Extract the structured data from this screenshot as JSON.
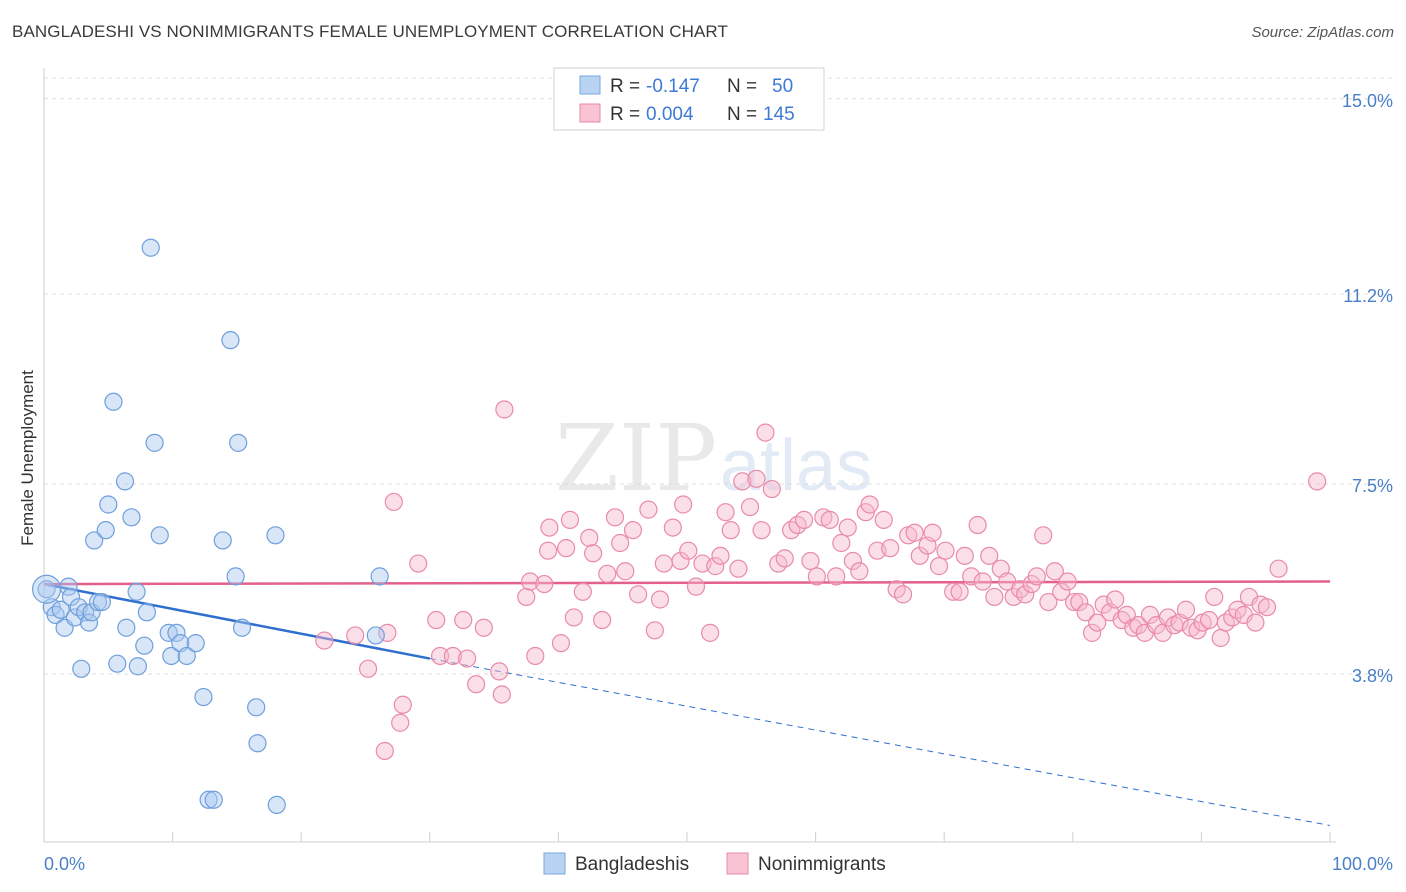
{
  "title": "BANGLADESHI VS NONIMMIGRANTS FEMALE UNEMPLOYMENT CORRELATION CHART",
  "source": "Source: ZipAtlas.com",
  "watermark": {
    "zip": "ZIP",
    "atlas": "atlas"
  },
  "chart_data": {
    "type": "scatter",
    "title": "BANGLADESHI VS NONIMMIGRANTS FEMALE UNEMPLOYMENT CORRELATION CHART",
    "xlabel": "",
    "ylabel": "Female Unemployment",
    "xlim": [
      0,
      100
    ],
    "ylim": [
      0.8,
      15.6
    ],
    "x_tick_labels": [
      "0.0%",
      "100.0%"
    ],
    "y_ticks": [
      {
        "value": 15.0,
        "label": "15.0%"
      },
      {
        "value": 11.2,
        "label": "11.2%"
      },
      {
        "value": 7.5,
        "label": "7.5%"
      },
      {
        "value": 3.8,
        "label": "3.8%"
      }
    ],
    "grid": true,
    "legend_position": "top-center",
    "stats": [
      {
        "r_label": "R = ",
        "r_value": "-0.147",
        "n_label": "N = ",
        "n_value": "50"
      },
      {
        "r_label": "R = ",
        "r_value": "0.004",
        "n_label": "N = ",
        "n_value": "145"
      }
    ],
    "series": [
      {
        "name": "Bangladeshis",
        "color": "#a9c8ef",
        "stroke": "#6f9fdc",
        "trend_color": "#2f6fce",
        "trend": {
          "x0": 0,
          "y0": 5.55,
          "x1": 30,
          "y1": 4.1,
          "dash_to_x": 100,
          "dash_to_y": 0.85
        },
        "points": [
          [
            0.2,
            5.45
          ],
          [
            0.6,
            5.1
          ],
          [
            0.9,
            4.95
          ],
          [
            1.3,
            5.05
          ],
          [
            1.6,
            4.7
          ],
          [
            1.9,
            5.5
          ],
          [
            2.1,
            5.3
          ],
          [
            2.4,
            4.9
          ],
          [
            2.7,
            5.1
          ],
          [
            2.9,
            3.9
          ],
          [
            3.2,
            5.0
          ],
          [
            3.5,
            4.8
          ],
          [
            3.7,
            5.0
          ],
          [
            3.9,
            6.4
          ],
          [
            4.2,
            5.2
          ],
          [
            4.5,
            5.2
          ],
          [
            4.8,
            6.6
          ],
          [
            5.0,
            7.1
          ],
          [
            5.4,
            9.1
          ],
          [
            5.7,
            4.0
          ],
          [
            6.3,
            7.55
          ],
          [
            6.4,
            4.7
          ],
          [
            6.8,
            6.85
          ],
          [
            7.2,
            5.4
          ],
          [
            7.3,
            3.95
          ],
          [
            7.8,
            4.35
          ],
          [
            8.0,
            5.0
          ],
          [
            8.3,
            12.1
          ],
          [
            8.6,
            8.3
          ],
          [
            9.0,
            6.5
          ],
          [
            9.7,
            4.6
          ],
          [
            9.9,
            4.15
          ],
          [
            10.3,
            4.6
          ],
          [
            10.6,
            4.4
          ],
          [
            11.1,
            4.15
          ],
          [
            11.8,
            4.4
          ],
          [
            12.4,
            3.35
          ],
          [
            12.8,
            1.35
          ],
          [
            13.2,
            1.35
          ],
          [
            13.9,
            6.4
          ],
          [
            14.5,
            10.3
          ],
          [
            14.9,
            5.7
          ],
          [
            15.1,
            8.3
          ],
          [
            15.4,
            4.7
          ],
          [
            16.5,
            3.15
          ],
          [
            16.6,
            2.45
          ],
          [
            18.0,
            6.5
          ],
          [
            18.1,
            1.25
          ],
          [
            25.8,
            4.55
          ],
          [
            26.1,
            5.7
          ]
        ]
      },
      {
        "name": "Nonimmigrants",
        "color": "#f7b9cc",
        "stroke": "#e98aa8",
        "trend_color": "#e3608b",
        "trend": {
          "x0": 0,
          "y0": 5.55,
          "x1": 100,
          "y1": 5.6
        },
        "points": [
          [
            21.8,
            4.45
          ],
          [
            24.2,
            4.55
          ],
          [
            25.2,
            3.9
          ],
          [
            26.5,
            2.3
          ],
          [
            26.7,
            4.6
          ],
          [
            27.2,
            7.15
          ],
          [
            27.7,
            2.85
          ],
          [
            27.9,
            3.2
          ],
          [
            29.1,
            5.95
          ],
          [
            30.5,
            4.85
          ],
          [
            30.8,
            4.15
          ],
          [
            31.8,
            4.15
          ],
          [
            32.6,
            4.85
          ],
          [
            32.9,
            4.1
          ],
          [
            33.6,
            3.6
          ],
          [
            34.2,
            4.7
          ],
          [
            35.4,
            3.85
          ],
          [
            35.6,
            3.4
          ],
          [
            35.8,
            8.95
          ],
          [
            37.5,
            5.3
          ],
          [
            37.8,
            5.6
          ],
          [
            38.2,
            4.15
          ],
          [
            38.9,
            5.55
          ],
          [
            39.2,
            6.2
          ],
          [
            39.3,
            6.65
          ],
          [
            40.2,
            4.4
          ],
          [
            40.6,
            6.25
          ],
          [
            40.9,
            6.8
          ],
          [
            41.2,
            4.9
          ],
          [
            41.9,
            5.4
          ],
          [
            42.4,
            6.45
          ],
          [
            42.7,
            6.15
          ],
          [
            43.4,
            4.85
          ],
          [
            43.8,
            5.75
          ],
          [
            44.4,
            6.85
          ],
          [
            44.8,
            6.35
          ],
          [
            45.2,
            5.8
          ],
          [
            45.8,
            6.6
          ],
          [
            46.2,
            5.35
          ],
          [
            47.0,
            7.0
          ],
          [
            47.5,
            4.65
          ],
          [
            47.9,
            5.25
          ],
          [
            48.2,
            5.95
          ],
          [
            48.9,
            6.65
          ],
          [
            49.5,
            6.0
          ],
          [
            49.7,
            7.1
          ],
          [
            50.1,
            6.2
          ],
          [
            50.7,
            5.5
          ],
          [
            51.2,
            5.95
          ],
          [
            51.8,
            4.6
          ],
          [
            52.2,
            5.9
          ],
          [
            52.6,
            6.1
          ],
          [
            53.0,
            6.95
          ],
          [
            53.4,
            6.6
          ],
          [
            54.0,
            5.85
          ],
          [
            54.3,
            7.55
          ],
          [
            54.9,
            7.05
          ],
          [
            55.4,
            7.6
          ],
          [
            55.8,
            6.6
          ],
          [
            56.1,
            8.5
          ],
          [
            56.6,
            7.4
          ],
          [
            57.1,
            5.95
          ],
          [
            57.6,
            6.05
          ],
          [
            58.1,
            6.6
          ],
          [
            58.6,
            6.7
          ],
          [
            59.1,
            6.8
          ],
          [
            59.6,
            6.0
          ],
          [
            60.1,
            5.7
          ],
          [
            60.6,
            6.85
          ],
          [
            61.1,
            6.8
          ],
          [
            61.6,
            5.7
          ],
          [
            62.0,
            6.35
          ],
          [
            62.5,
            6.65
          ],
          [
            62.9,
            6.0
          ],
          [
            63.4,
            5.8
          ],
          [
            63.9,
            6.95
          ],
          [
            64.2,
            7.1
          ],
          [
            64.8,
            6.2
          ],
          [
            65.3,
            6.8
          ],
          [
            65.8,
            6.25
          ],
          [
            66.3,
            5.45
          ],
          [
            66.8,
            5.35
          ],
          [
            67.2,
            6.5
          ],
          [
            67.7,
            6.55
          ],
          [
            68.1,
            6.1
          ],
          [
            68.7,
            6.3
          ],
          [
            69.1,
            6.55
          ],
          [
            69.6,
            5.9
          ],
          [
            70.1,
            6.2
          ],
          [
            70.7,
            5.4
          ],
          [
            71.2,
            5.4
          ],
          [
            71.6,
            6.1
          ],
          [
            72.1,
            5.7
          ],
          [
            72.6,
            6.7
          ],
          [
            73.0,
            5.6
          ],
          [
            73.5,
            6.1
          ],
          [
            73.9,
            5.3
          ],
          [
            74.4,
            5.85
          ],
          [
            74.9,
            5.6
          ],
          [
            75.4,
            5.3
          ],
          [
            75.9,
            5.45
          ],
          [
            76.3,
            5.35
          ],
          [
            76.8,
            5.55
          ],
          [
            77.2,
            5.7
          ],
          [
            77.7,
            6.5
          ],
          [
            78.1,
            5.2
          ],
          [
            78.6,
            5.8
          ],
          [
            79.1,
            5.4
          ],
          [
            79.6,
            5.6
          ],
          [
            80.1,
            5.2
          ],
          [
            80.5,
            5.2
          ],
          [
            81.0,
            5.0
          ],
          [
            81.5,
            4.6
          ],
          [
            81.9,
            4.8
          ],
          [
            82.4,
            5.15
          ],
          [
            82.9,
            5.0
          ],
          [
            83.3,
            5.25
          ],
          [
            83.8,
            4.85
          ],
          [
            84.2,
            4.95
          ],
          [
            84.7,
            4.7
          ],
          [
            85.1,
            4.75
          ],
          [
            85.6,
            4.6
          ],
          [
            86.0,
            4.95
          ],
          [
            86.5,
            4.75
          ],
          [
            87.0,
            4.6
          ],
          [
            87.4,
            4.9
          ],
          [
            87.9,
            4.75
          ],
          [
            88.3,
            4.8
          ],
          [
            88.8,
            5.05
          ],
          [
            89.2,
            4.7
          ],
          [
            89.7,
            4.65
          ],
          [
            90.1,
            4.8
          ],
          [
            90.6,
            4.85
          ],
          [
            91.0,
            5.3
          ],
          [
            91.5,
            4.5
          ],
          [
            91.9,
            4.8
          ],
          [
            92.4,
            4.9
          ],
          [
            92.8,
            5.05
          ],
          [
            93.3,
            4.95
          ],
          [
            93.7,
            5.3
          ],
          [
            94.2,
            4.8
          ],
          [
            94.6,
            5.15
          ],
          [
            95.1,
            5.1
          ],
          [
            96.0,
            5.85
          ],
          [
            99.0,
            7.55
          ]
        ]
      }
    ]
  }
}
